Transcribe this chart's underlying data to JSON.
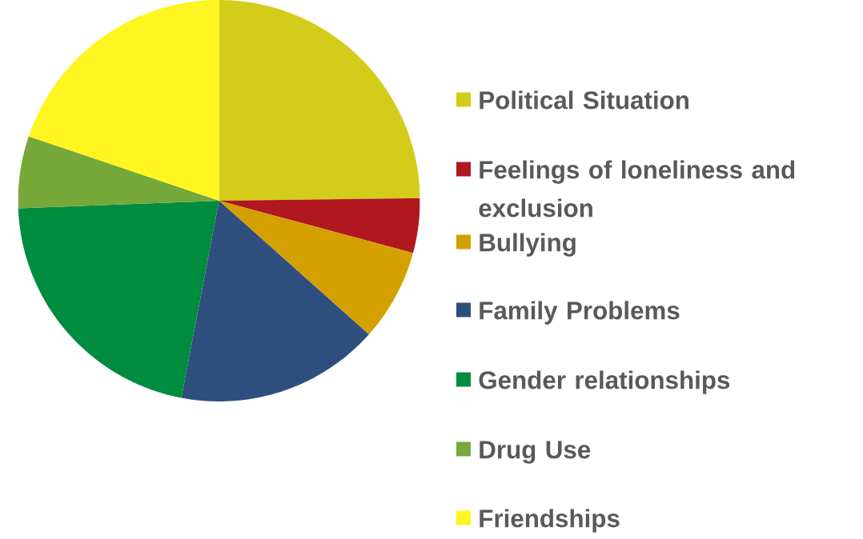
{
  "chart_data": {
    "type": "pie",
    "legend": "right",
    "categories": [
      "Political Situation",
      "Feelings of loneliness and exclusion",
      "Bullying",
      "Family Problems",
      "Gender relationships",
      "Drug Use",
      "Friendships"
    ],
    "values": [
      24.8,
      4.4,
      7.4,
      16.4,
      21.4,
      5.8,
      19.8
    ],
    "colors": [
      "#d4cc1a",
      "#b0171f",
      "#d4a000",
      "#2e4f7e",
      "#008c3e",
      "#76a83a",
      "#fff520"
    ]
  }
}
